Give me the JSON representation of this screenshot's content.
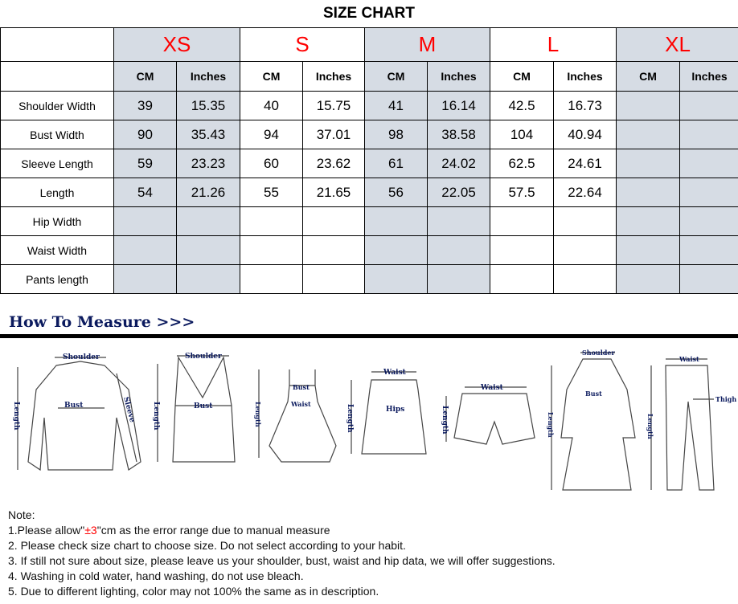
{
  "title": "SIZE CHART",
  "sizes": [
    "XS",
    "S",
    "M",
    "L",
    "XL"
  ],
  "unit_headers": [
    "CM",
    "Inches"
  ],
  "rows": [
    {
      "label": "Shoulder Width",
      "values": [
        "39",
        "15.35",
        "40",
        "15.75",
        "41",
        "16.14",
        "42.5",
        "16.73",
        "",
        ""
      ]
    },
    {
      "label": "Bust Width",
      "values": [
        "90",
        "35.43",
        "94",
        "37.01",
        "98",
        "38.58",
        "104",
        "40.94",
        "",
        ""
      ]
    },
    {
      "label": "Sleeve Length",
      "values": [
        "59",
        "23.23",
        "60",
        "23.62",
        "61",
        "24.02",
        "62.5",
        "24.61",
        "",
        ""
      ]
    },
    {
      "label": "Length",
      "values": [
        "54",
        "21.26",
        "55",
        "21.65",
        "56",
        "22.05",
        "57.5",
        "22.64",
        "",
        ""
      ]
    },
    {
      "label": "Hip Width",
      "values": [
        "",
        "",
        "",
        "",
        "",
        "",
        "",
        "",
        "",
        ""
      ]
    },
    {
      "label": "Waist Width",
      "values": [
        "",
        "",
        "",
        "",
        "",
        "",
        "",
        "",
        "",
        ""
      ]
    },
    {
      "label": "Pants length",
      "values": [
        "",
        "",
        "",
        "",
        "",
        "",
        "",
        "",
        "",
        ""
      ]
    }
  ],
  "colors": {
    "size_label": "#ff0000",
    "shade": "#d6dce4",
    "measure_heading": "#0b1a5e"
  },
  "how_to_measure": "How To Measure >>>",
  "diagram_labels": {
    "shoulder": "Shoulder",
    "bust": "Bust",
    "sleeve": "Sleeve",
    "length": "Length",
    "waist": "Waist",
    "hips": "Hips",
    "thigh": "Thigh"
  },
  "notes": {
    "heading": "Note:",
    "n1_pre": "1.Please allow\"",
    "n1_red": "±3",
    "n1_post": "\"cm as the error range due to manual measure",
    "n2": "2. Please check size chart to choose size. Do not select according to your habit.",
    "n3": "3. If still not sure about size, please leave us your shoulder, bust, waist and hip data, we will offer suggestions.",
    "n4": "4. Washing in cold water, hand washing, do not use bleach.",
    "n5": "5. Due to different lighting, color may not 100% the same as in description."
  }
}
